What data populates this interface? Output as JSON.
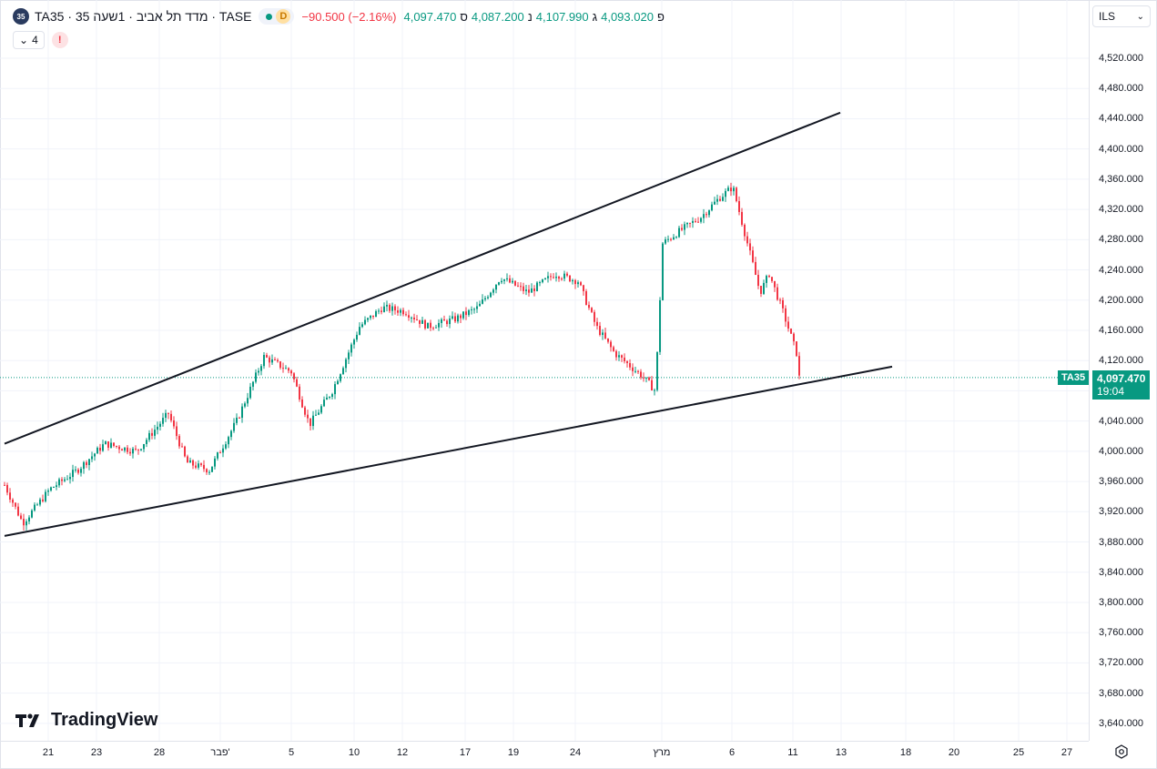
{
  "header": {
    "symbol_badge": "35",
    "title": "TA35 · 35 מדד תל אביב · 1שעה · TASE",
    "market_status_icon": "green-dot-icon",
    "delay_badge": "D",
    "change": "−90.500 (−2.16%)",
    "ohlc": [
      {
        "label": "ס",
        "value": "4,097.470"
      },
      {
        "label": "נ",
        "value": "4,087.200"
      },
      {
        "label": "ג",
        "value": "4,107.990"
      },
      {
        "label": "פ",
        "value": "4,093.020"
      }
    ],
    "indicators_count": "4",
    "alert_badge": "!"
  },
  "currency_select": {
    "value": "ILS",
    "icon": "chevron-down-icon"
  },
  "watermark": {
    "text": "TradingView",
    "icon": "tradingview-logo-icon"
  },
  "colors": {
    "up": "#089981",
    "down": "#f23645",
    "line": "#131722",
    "grid": "#f0f3fa"
  },
  "last_price_tag": {
    "symbol": "TA35",
    "price": "4,097.470",
    "countdown": "19:04"
  },
  "chart_data": {
    "type": "candlestick",
    "title": "TA35 · 35 מדד תל אביב · 1שעה · TASE",
    "interval": "1 hour",
    "currency": "ILS",
    "ylim": [
      3620,
      4580
    ],
    "y_ticks": [
      "4,520.000",
      "4,480.000",
      "4,440.000",
      "4,400.000",
      "4,360.000",
      "4,320.000",
      "4,280.000",
      "4,240.000",
      "4,200.000",
      "4,160.000",
      "4,120.000",
      "4,080.000",
      "4,040.000",
      "4,000.000",
      "3,960.000",
      "3,920.000",
      "3,880.000",
      "3,840.000",
      "3,800.000",
      "3,760.000",
      "3,720.000",
      "3,680.000",
      "3,640.000"
    ],
    "x_labels": [
      "21",
      "23",
      "28",
      "פבר'",
      "5",
      "10",
      "12",
      "17",
      "19",
      "24",
      "מרץ",
      "6",
      "11",
      "13",
      "18",
      "20",
      "25",
      "27"
    ],
    "grid": true,
    "last_price": 4097.47,
    "anchors": [
      [
        0,
        3968
      ],
      [
        25,
        3905
      ],
      [
        55,
        3950
      ],
      [
        85,
        3975
      ],
      [
        115,
        4010
      ],
      [
        150,
        4000
      ],
      [
        185,
        4050
      ],
      [
        205,
        3985
      ],
      [
        230,
        3975
      ],
      [
        260,
        4040
      ],
      [
        290,
        4125
      ],
      [
        320,
        4105
      ],
      [
        340,
        4035
      ],
      [
        365,
        4080
      ],
      [
        395,
        4165
      ],
      [
        420,
        4190
      ],
      [
        445,
        4185
      ],
      [
        470,
        4165
      ],
      [
        500,
        4175
      ],
      [
        525,
        4190
      ],
      [
        550,
        4230
      ],
      [
        580,
        4210
      ],
      [
        610,
        4235
      ],
      [
        635,
        4225
      ],
      [
        655,
        4165
      ],
      [
        675,
        4130
      ],
      [
        695,
        4110
      ],
      [
        705,
        4100
      ],
      [
        720,
        4080
      ],
      [
        728,
        4275
      ],
      [
        745,
        4290
      ],
      [
        770,
        4310
      ],
      [
        790,
        4335
      ],
      [
        805,
        4350
      ],
      [
        820,
        4280
      ],
      [
        835,
        4210
      ],
      [
        845,
        4235
      ],
      [
        860,
        4185
      ],
      [
        875,
        4130
      ],
      [
        878,
        4097.47
      ]
    ],
    "trendlines": [
      {
        "name": "upper-channel",
        "points": [
          [
            "start",
            4010
          ],
          [
            "end",
            4448
          ]
        ]
      },
      {
        "name": "lower-channel",
        "points": [
          [
            "start",
            3888
          ],
          [
            "end",
            4112
          ]
        ]
      }
    ]
  }
}
